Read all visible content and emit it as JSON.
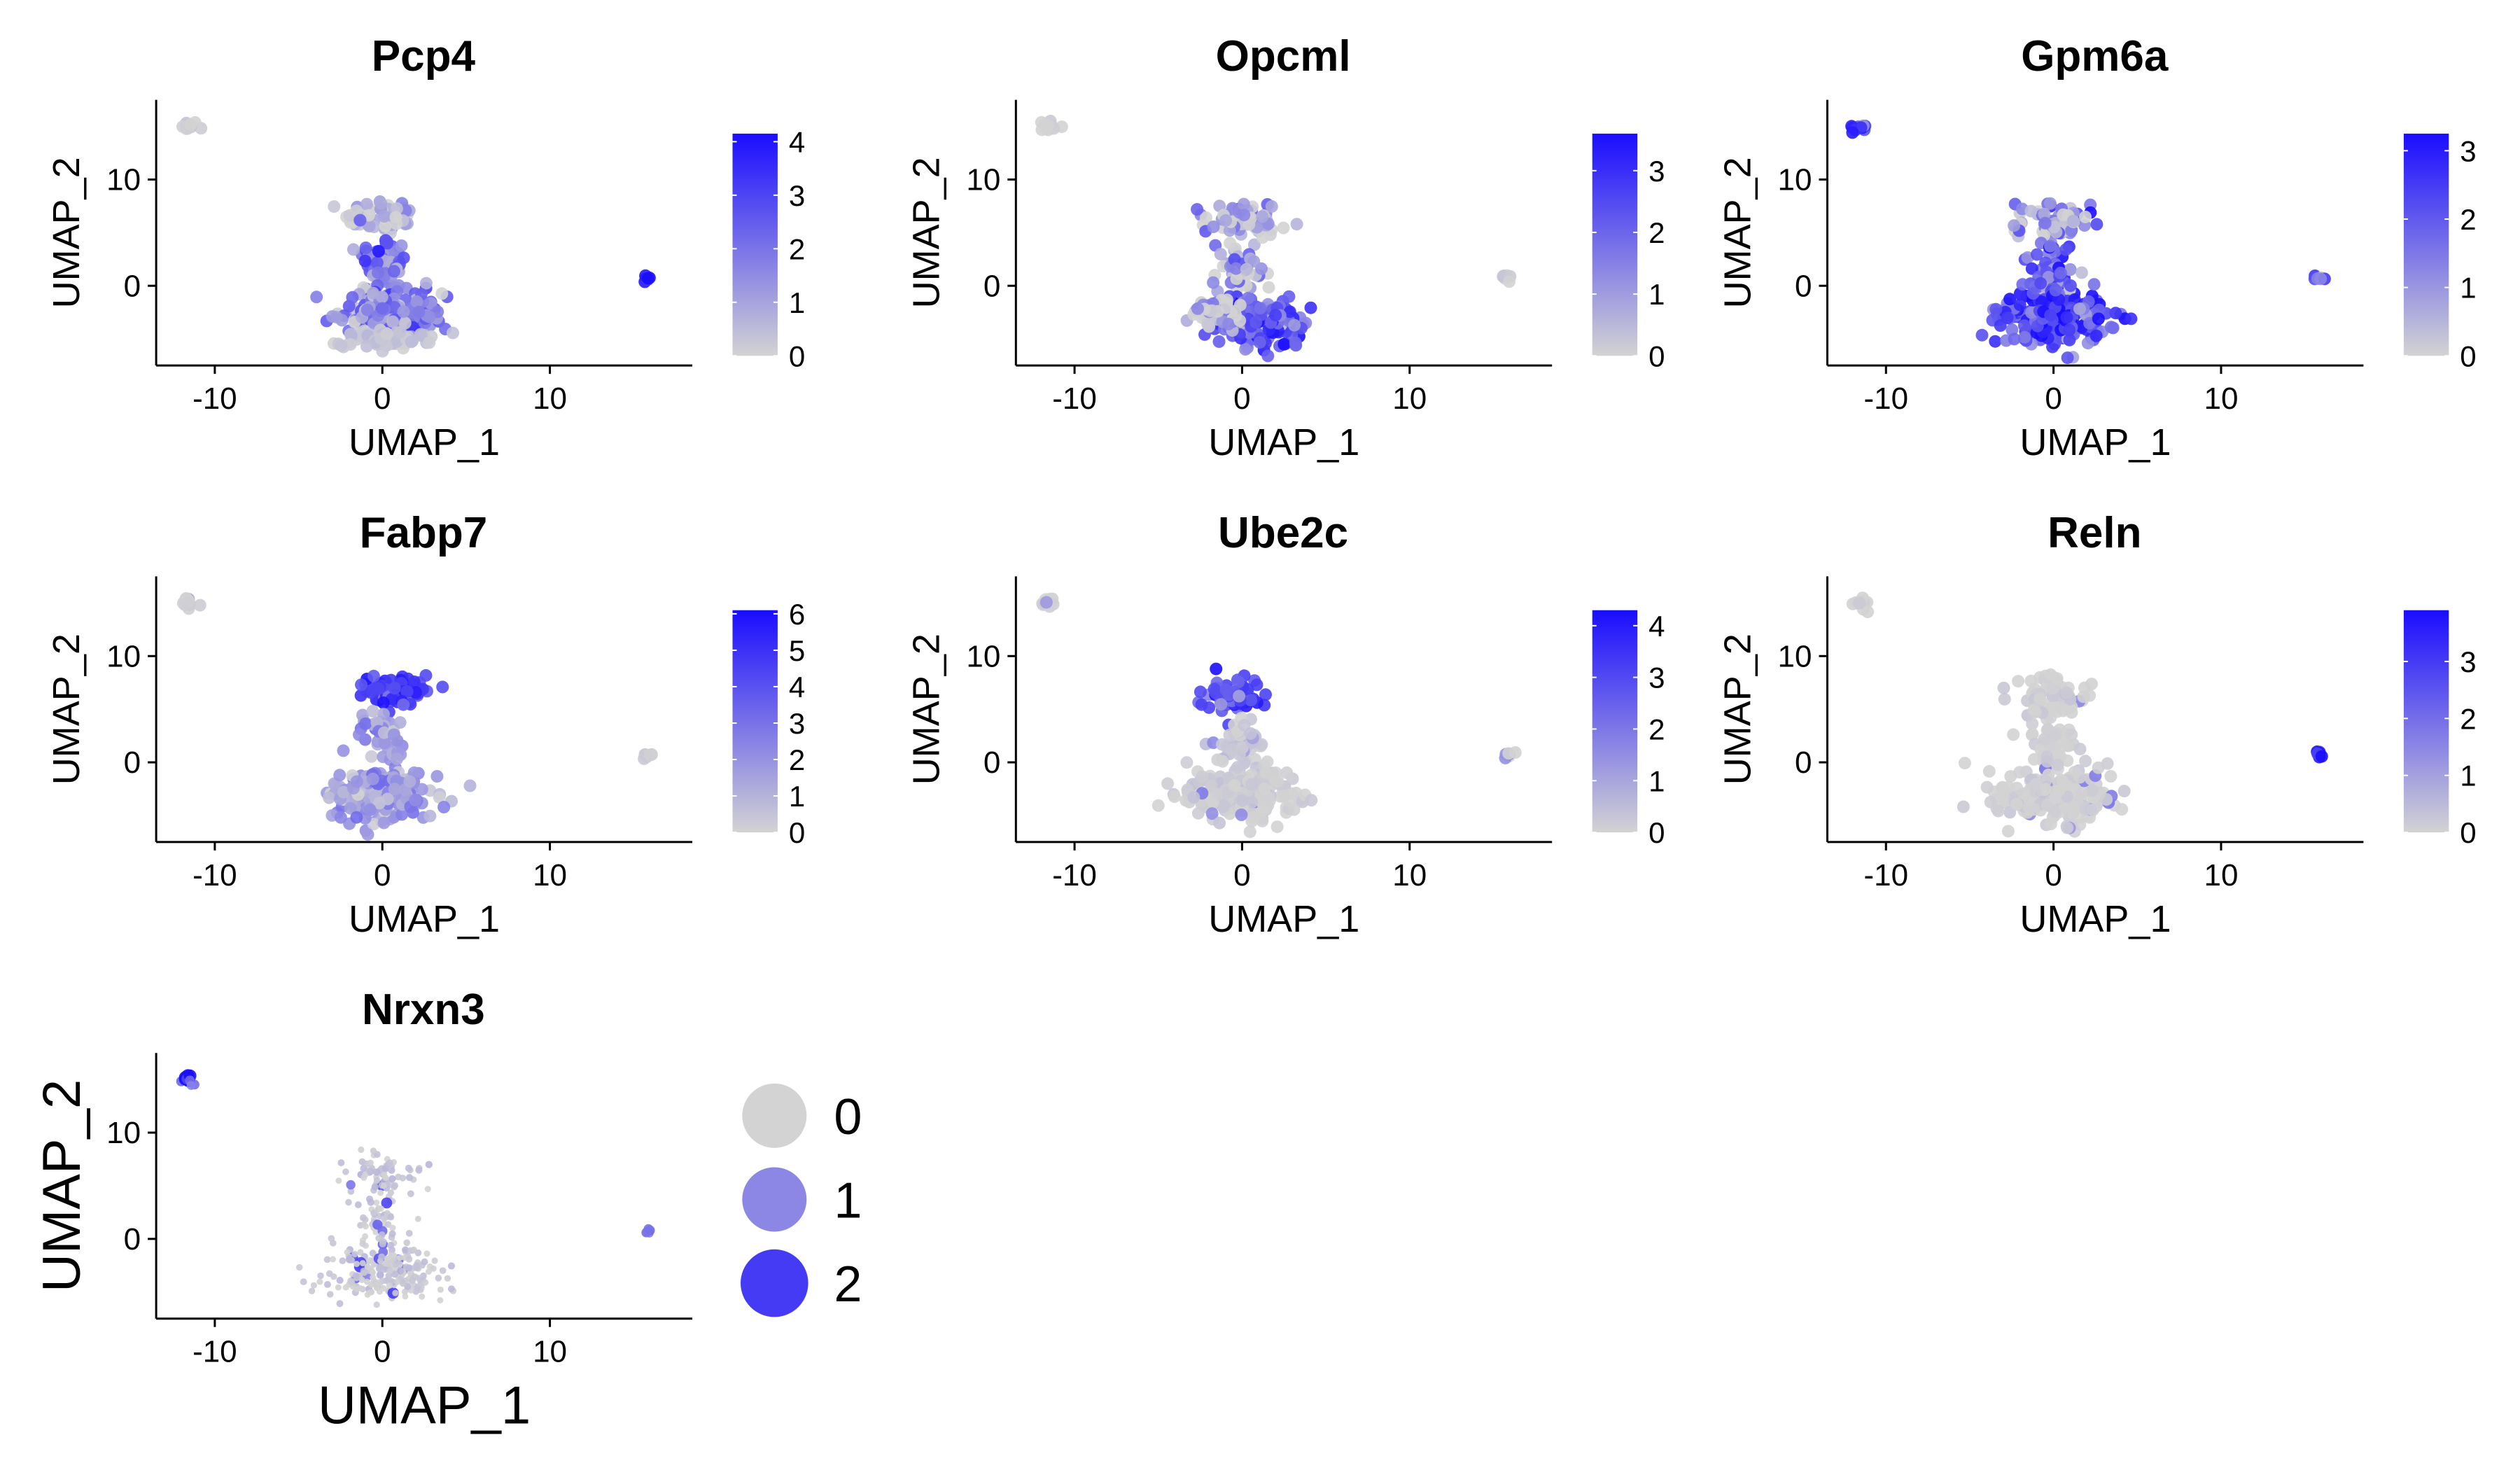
{
  "figure": {
    "point_color_low": "#d3d3d3",
    "point_color_high": "#1a0dff"
  },
  "chart_data": [
    {
      "type": "scatter",
      "title": "Pcp4",
      "xlabel": "UMAP_1",
      "ylabel": "UMAP_2",
      "xlim": [
        -13.5,
        18.5
      ],
      "ylim": [
        -7.5,
        17.5
      ],
      "xticks": [
        -10,
        0,
        10
      ],
      "yticks": [
        0,
        10
      ],
      "colorbar": {
        "min": 0,
        "max": 4.15,
        "ticks": [
          0,
          1,
          2,
          3,
          4
        ]
      },
      "hotspots": [
        {
          "x": -11.5,
          "y": 15,
          "value": 0.1,
          "count": 12,
          "sx": 0.35,
          "sy": 0.35
        },
        {
          "x": 15.8,
          "y": 0.7,
          "value": 3.6,
          "count": 6,
          "sx": 0.25,
          "sy": 0.25
        },
        {
          "x": 0.0,
          "y": 6.5,
          "value": 0.5,
          "count": 60,
          "sx": 1.6,
          "sy": 1.2
        },
        {
          "x": 0.0,
          "y": 2.0,
          "value": 2.0,
          "count": 70,
          "sx": 1.0,
          "sy": 2.0
        },
        {
          "x": 0.5,
          "y": -2.5,
          "value": 1.6,
          "count": 170,
          "sx": 2.2,
          "sy": 1.4
        },
        {
          "x": 0.0,
          "y": -5.0,
          "value": 0.3,
          "count": 70,
          "sx": 2.0,
          "sy": 0.6
        }
      ]
    },
    {
      "type": "scatter",
      "title": "Opcml",
      "xlabel": "UMAP_1",
      "ylabel": "UMAP_2",
      "xlim": [
        -13.5,
        18.5
      ],
      "ylim": [
        -7.5,
        17.5
      ],
      "xticks": [
        -10,
        0,
        10
      ],
      "yticks": [
        0,
        10
      ],
      "colorbar": {
        "min": 0,
        "max": 3.6,
        "ticks": [
          0,
          1,
          2,
          3
        ]
      },
      "hotspots": [
        {
          "x": -11.5,
          "y": 15,
          "value": 0.0,
          "count": 12,
          "sx": 0.35,
          "sy": 0.35
        },
        {
          "x": 15.8,
          "y": 0.7,
          "value": 0.1,
          "count": 6,
          "sx": 0.25,
          "sy": 0.25
        },
        {
          "x": 0.0,
          "y": 6.0,
          "value": 0.6,
          "count": 70,
          "sx": 1.6,
          "sy": 1.5
        },
        {
          "x": 0.0,
          "y": 1.5,
          "value": 0.5,
          "count": 50,
          "sx": 1.0,
          "sy": 1.5
        },
        {
          "x": 1.2,
          "y": -3.5,
          "value": 2.3,
          "count": 180,
          "sx": 2.0,
          "sy": 1.6
        },
        {
          "x": -1.5,
          "y": -2.5,
          "value": 0.6,
          "count": 60,
          "sx": 1.2,
          "sy": 1.0
        }
      ]
    },
    {
      "type": "scatter",
      "title": "Gpm6a",
      "xlabel": "UMAP_1",
      "ylabel": "UMAP_2",
      "xlim": [
        -13.5,
        18.5
      ],
      "ylim": [
        -7.5,
        17.5
      ],
      "xticks": [
        -10,
        0,
        10
      ],
      "yticks": [
        0,
        10
      ],
      "colorbar": {
        "min": 0,
        "max": 3.25,
        "ticks": [
          0,
          1,
          2,
          3
        ]
      },
      "hotspots": [
        {
          "x": -11.5,
          "y": 15,
          "value": 2.6,
          "count": 12,
          "sx": 0.35,
          "sy": 0.35
        },
        {
          "x": 15.8,
          "y": 0.7,
          "value": 1.8,
          "count": 6,
          "sx": 0.25,
          "sy": 0.25
        },
        {
          "x": 0.0,
          "y": 6.0,
          "value": 1.2,
          "count": 70,
          "sx": 1.6,
          "sy": 1.5
        },
        {
          "x": 0.0,
          "y": 1.5,
          "value": 1.6,
          "count": 60,
          "sx": 1.0,
          "sy": 1.6
        },
        {
          "x": 0.0,
          "y": -3.0,
          "value": 2.3,
          "count": 230,
          "sx": 2.3,
          "sy": 1.8
        }
      ]
    },
    {
      "type": "scatter",
      "title": "Fabp7",
      "xlabel": "UMAP_1",
      "ylabel": "UMAP_2",
      "xlim": [
        -13.5,
        18.5
      ],
      "ylim": [
        -7.5,
        17.5
      ],
      "xticks": [
        -10,
        0,
        10
      ],
      "yticks": [
        0,
        10
      ],
      "colorbar": {
        "min": 0,
        "max": 6.1,
        "ticks": [
          0,
          1,
          2,
          3,
          4,
          5,
          6
        ]
      },
      "hotspots": [
        {
          "x": -11.5,
          "y": 15,
          "value": 0.1,
          "count": 12,
          "sx": 0.35,
          "sy": 0.35
        },
        {
          "x": 15.8,
          "y": 0.7,
          "value": 0.2,
          "count": 6,
          "sx": 0.25,
          "sy": 0.25
        },
        {
          "x": 0.8,
          "y": 6.6,
          "value": 4.6,
          "count": 90,
          "sx": 1.4,
          "sy": 0.9
        },
        {
          "x": 0.0,
          "y": 2.5,
          "value": 1.8,
          "count": 50,
          "sx": 1.0,
          "sy": 1.5
        },
        {
          "x": 0.0,
          "y": -3.0,
          "value": 1.6,
          "count": 200,
          "sx": 2.3,
          "sy": 1.8
        }
      ]
    },
    {
      "type": "scatter",
      "title": "Ube2c",
      "xlabel": "UMAP_1",
      "ylabel": "UMAP_2",
      "xlim": [
        -13.5,
        18.5
      ],
      "ylim": [
        -7.5,
        17.5
      ],
      "xticks": [
        -10,
        0,
        10
      ],
      "yticks": [
        0,
        10
      ],
      "colorbar": {
        "min": 0,
        "max": 4.3,
        "ticks": [
          0,
          1,
          2,
          3,
          4
        ]
      },
      "hotspots": [
        {
          "x": -11.5,
          "y": 15,
          "value": 0.0,
          "count": 12,
          "sx": 0.35,
          "sy": 0.35
        },
        {
          "x": 15.8,
          "y": 0.7,
          "value": 0.8,
          "count": 6,
          "sx": 0.25,
          "sy": 0.25
        },
        {
          "x": -0.5,
          "y": 6.0,
          "value": 2.8,
          "count": 70,
          "sx": 1.3,
          "sy": 1.1
        },
        {
          "x": 0.0,
          "y": 1.5,
          "value": 0.2,
          "count": 50,
          "sx": 1.0,
          "sy": 1.5
        },
        {
          "x": 0.0,
          "y": -3.0,
          "value": 0.1,
          "count": 220,
          "sx": 2.3,
          "sy": 1.8
        }
      ]
    },
    {
      "type": "scatter",
      "title": "Reln",
      "xlabel": "UMAP_1",
      "ylabel": "UMAP_2",
      "xlim": [
        -13.5,
        18.5
      ],
      "ylim": [
        -7.5,
        17.5
      ],
      "xticks": [
        -10,
        0,
        10
      ],
      "yticks": [
        0,
        10
      ],
      "colorbar": {
        "min": 0,
        "max": 3.9,
        "ticks": [
          0,
          1,
          2,
          3
        ]
      },
      "hotspots": [
        {
          "x": -11.5,
          "y": 15,
          "value": 0.0,
          "count": 12,
          "sx": 0.35,
          "sy": 0.35
        },
        {
          "x": 15.8,
          "y": 0.7,
          "value": 3.2,
          "count": 6,
          "sx": 0.25,
          "sy": 0.25
        },
        {
          "x": 0.0,
          "y": 6.0,
          "value": 0.0,
          "count": 70,
          "sx": 1.6,
          "sy": 1.5
        },
        {
          "x": 0.0,
          "y": 1.5,
          "value": 0.0,
          "count": 50,
          "sx": 1.0,
          "sy": 1.5
        },
        {
          "x": 0.0,
          "y": -3.0,
          "value": 0.0,
          "count": 220,
          "sx": 2.3,
          "sy": 1.8
        }
      ]
    },
    {
      "type": "scatter",
      "title": "Nrxn3",
      "xlabel": "UMAP_1",
      "ylabel": "UMAP_2",
      "xlim": [
        -13.5,
        18.5
      ],
      "ylim": [
        -7.5,
        17.5
      ],
      "xticks": [
        -10,
        0,
        10
      ],
      "yticks": [
        0,
        10
      ],
      "size_legend": {
        "values": [
          0,
          1,
          2
        ],
        "labels": [
          "0",
          "1",
          "2"
        ]
      },
      "hotspots": [
        {
          "x": -11.5,
          "y": 15,
          "value": 2.5,
          "count": 12,
          "sx": 0.35,
          "sy": 0.35
        },
        {
          "x": 15.8,
          "y": 0.7,
          "value": 1.4,
          "count": 6,
          "sx": 0.25,
          "sy": 0.25
        },
        {
          "x": 0.0,
          "y": 6.0,
          "value": 0.15,
          "count": 70,
          "sx": 1.6,
          "sy": 1.5
        },
        {
          "x": 0.0,
          "y": 1.5,
          "value": 0.1,
          "count": 50,
          "sx": 1.0,
          "sy": 1.5
        },
        {
          "x": 0.0,
          "y": -3.0,
          "value": 0.1,
          "count": 220,
          "sx": 2.3,
          "sy": 1.8
        }
      ]
    }
  ]
}
